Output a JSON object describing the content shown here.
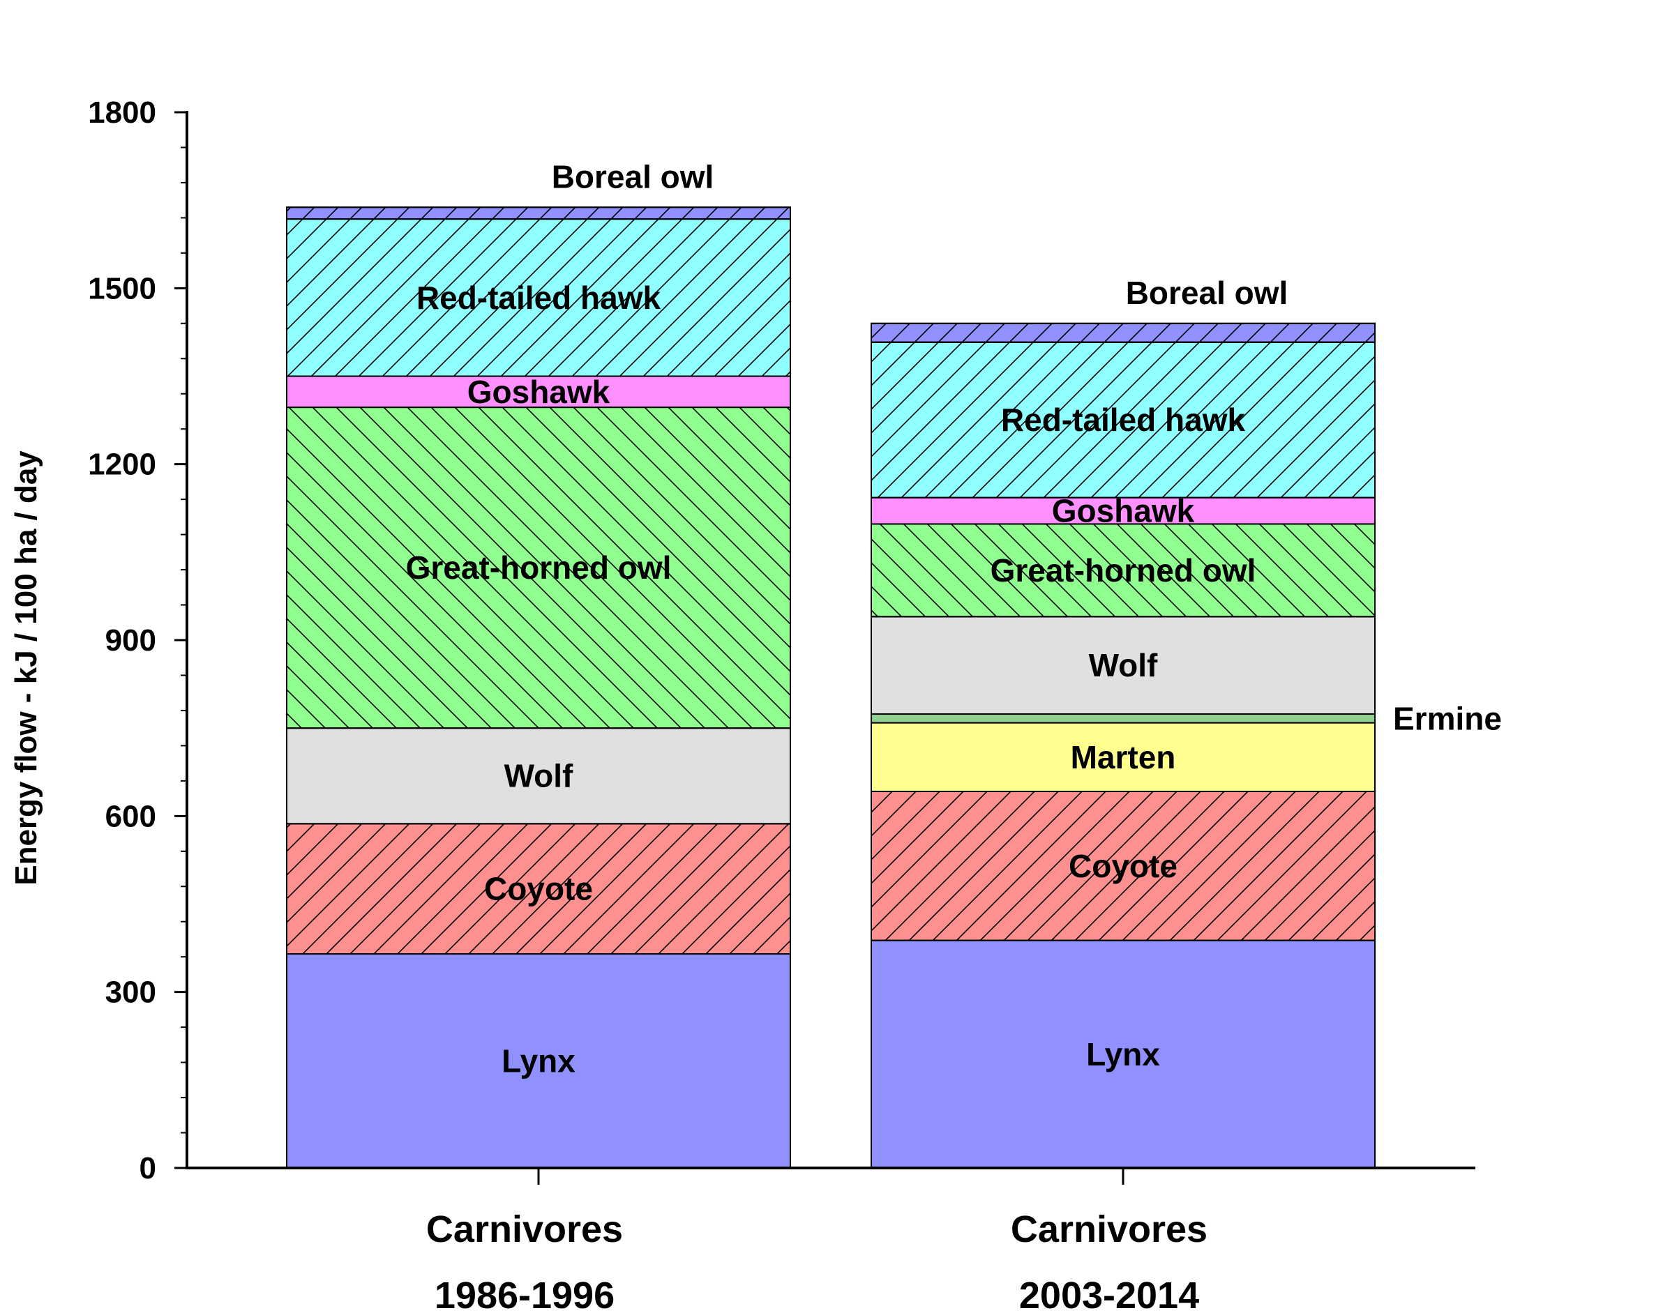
{
  "chart_data": {
    "type": "bar",
    "stacked": true,
    "ylabel": "Energy flow - kJ / 100 ha / day",
    "ylim": [
      0,
      1800
    ],
    "yticks": [
      0,
      300,
      600,
      900,
      1200,
      1500,
      1800
    ],
    "grid": false,
    "categories": [
      {
        "line1": "Carnivores",
        "line2": "1986-1996"
      },
      {
        "line1": "Carnivores",
        "line2": "2003-2014"
      }
    ],
    "series": [
      {
        "name": "Lynx",
        "color": "#9090ff",
        "hatch": "none",
        "values": [
          365,
          388
        ]
      },
      {
        "name": "Coyote",
        "color": "#ff9090",
        "hatch": "forward",
        "values": [
          222,
          254
        ]
      },
      {
        "name": "Marten",
        "color": "#ffff90",
        "hatch": "none",
        "values": [
          0,
          117
        ]
      },
      {
        "name": "Ermine",
        "color": "#90d090",
        "hatch": "none",
        "values": [
          0,
          15
        ]
      },
      {
        "name": "Wolf",
        "color": "#e0e0e0",
        "hatch": "none",
        "values": [
          163,
          166
        ]
      },
      {
        "name": "Great-horned owl",
        "color": "#90ff90",
        "hatch": "back",
        "values": [
          547,
          158
        ]
      },
      {
        "name": "Goshawk",
        "color": "#ff90ff",
        "hatch": "none",
        "values": [
          53,
          45
        ]
      },
      {
        "name": "Red-tailed hawk",
        "color": "#90ffff",
        "hatch": "forward",
        "values": [
          268,
          265
        ]
      },
      {
        "name": "Boreal owl",
        "color": "#9090ff",
        "hatch": "forward",
        "values": [
          20,
          32
        ]
      }
    ]
  }
}
